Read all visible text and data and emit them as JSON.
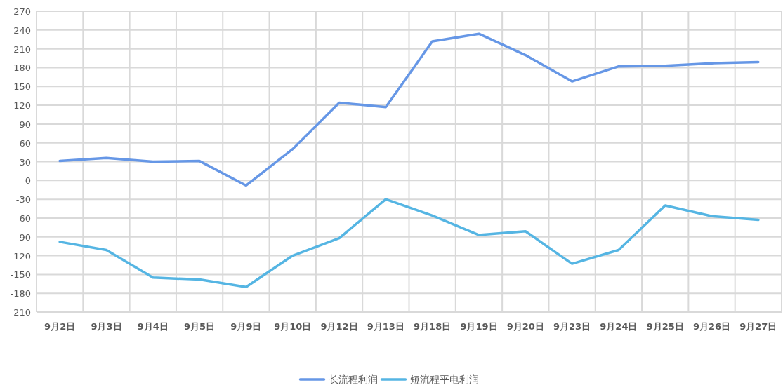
{
  "chart_data": {
    "type": "line",
    "categories": [
      "9月2日",
      "9月3日",
      "9月4日",
      "9月5日",
      "9月9日",
      "9月10日",
      "9月12日",
      "9月13日",
      "9月18日",
      "9月19日",
      "9月20日",
      "9月23日",
      "9月24日",
      "9月25日",
      "9月26日",
      "9月27日"
    ],
    "series": [
      {
        "name": "长流程利润",
        "color": "#6697e6",
        "values": [
          31,
          36,
          30,
          31,
          -8,
          50,
          124,
          117,
          222,
          234,
          200,
          158,
          182,
          183,
          187,
          189
        ]
      },
      {
        "name": "短流程平电利润",
        "color": "#55b5e3",
        "values": [
          -98,
          -111,
          -155,
          -158,
          -170,
          -120,
          -92,
          -30,
          -56,
          -87,
          -81,
          -133,
          -111,
          -40,
          -57,
          -63
        ]
      }
    ],
    "ylim": [
      -210,
      270
    ],
    "yticks": [
      -210,
      -180,
      -150,
      -120,
      -90,
      -60,
      -30,
      0,
      30,
      60,
      90,
      120,
      150,
      180,
      210,
      240,
      270
    ],
    "grid": true,
    "legend": "bottom",
    "marker": "none",
    "line_style": "solid"
  }
}
